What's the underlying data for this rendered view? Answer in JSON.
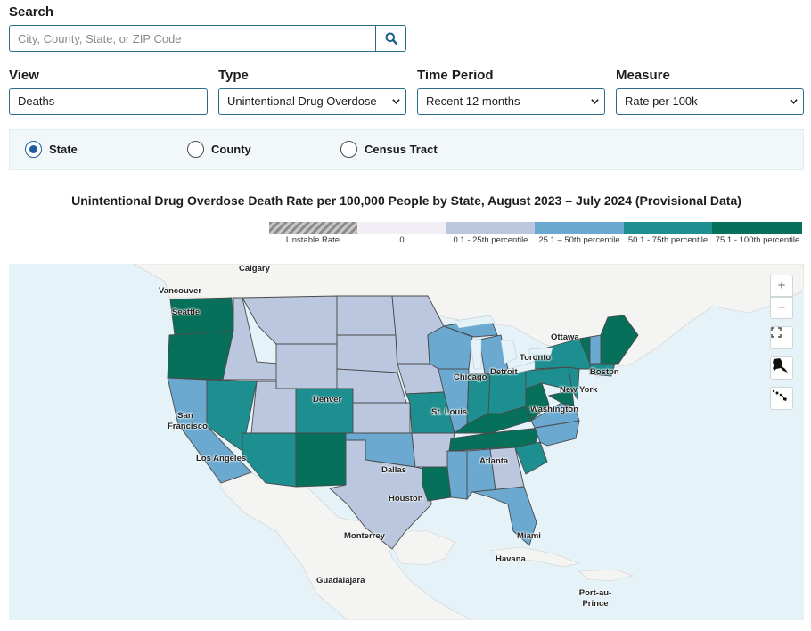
{
  "search": {
    "label": "Search",
    "placeholder": "City, County, State, or ZIP Code"
  },
  "filters": {
    "view": {
      "label": "View",
      "value": "Deaths"
    },
    "type": {
      "label": "Type",
      "value": "Unintentional Drug Overdose"
    },
    "time_period": {
      "label": "Time Period",
      "value": "Recent 12 months"
    },
    "measure": {
      "label": "Measure",
      "value": "Rate per 100k"
    }
  },
  "geography": {
    "options": [
      "State",
      "County",
      "Census Tract"
    ],
    "selected": "State"
  },
  "map": {
    "title": "Unintentional Drug Overdose Death Rate per 100,000 People by State, August 2023 – July 2024 (Provisional Data)",
    "legend": [
      {
        "label": "Unstable Rate",
        "color": "#9e9e9e"
      },
      {
        "label": "0",
        "color": "#f3eef6"
      },
      {
        "label": "0.1 - 25th percentile",
        "color": "#bac7df"
      },
      {
        "label": "25.1 – 50th percentile",
        "color": "#6ba9d0"
      },
      {
        "label": "50.1 - 75th percentile",
        "color": "#1e8f90"
      },
      {
        "label": "75.1 - 100th percentile",
        "color": "#06705a"
      }
    ],
    "cities": [
      "Calgary",
      "Vancouver",
      "Seattle",
      "Ottawa",
      "Toronto",
      "Detroit",
      "Boston",
      "Chicago",
      "New York",
      "Washington",
      "Denver",
      "St. Louis",
      "San Francisco",
      "Los Angeles",
      "Atlanta",
      "Dallas",
      "Houston",
      "Miami",
      "Monterrey",
      "Havana",
      "Guadalajara",
      "Port-au-Prince"
    ],
    "controls": {
      "zoom_in": "+",
      "zoom_out": "−",
      "fullscreen_icon": "fullscreen-icon",
      "alaska_icon": "alaska-icon",
      "hawaii_icon": "hawaii-icon"
    },
    "colors": {
      "water": "#e5f2f8",
      "land": "#f4f4f2",
      "border": "#5a5a5a"
    }
  }
}
